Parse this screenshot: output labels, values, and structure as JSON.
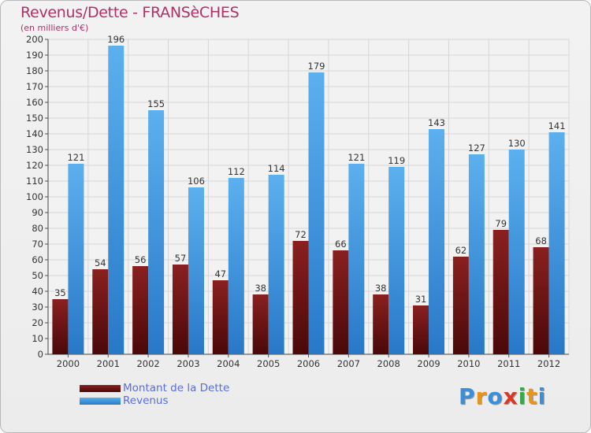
{
  "header": {
    "title": "Revenus/Dette - FRANSèCHES",
    "subtitle": "(en milliers d'€)"
  },
  "legend": {
    "items": [
      {
        "label": "Montant de la Dette",
        "color": "#7a1515"
      },
      {
        "label": "Revenus",
        "color": "#4a9fe0"
      }
    ]
  },
  "logo": {
    "letters": [
      {
        "ch": "P",
        "color": "#3a8fd8"
      },
      {
        "ch": "r",
        "color": "#e8941a"
      },
      {
        "ch": "o",
        "color": "#3a8fd8"
      },
      {
        "ch": "x",
        "color": "#d63a2a"
      },
      {
        "ch": "i",
        "color": "#3aa84a"
      },
      {
        "ch": "t",
        "color": "#e8941a"
      },
      {
        "ch": "i",
        "color": "#3a8fd8"
      }
    ]
  },
  "chart_data": {
    "type": "bar",
    "title": "Revenus/Dette - FRANSèCHES",
    "subtitle": "(en milliers d'€)",
    "xlabel": "",
    "ylabel": "",
    "categories": [
      "2000",
      "2001",
      "2002",
      "2003",
      "2004",
      "2005",
      "2006",
      "2007",
      "2008",
      "2009",
      "2010",
      "2011",
      "2012"
    ],
    "series": [
      {
        "name": "Montant de la Dette",
        "color": "#7a1515",
        "values": [
          35,
          54,
          56,
          57,
          47,
          38,
          72,
          66,
          38,
          31,
          62,
          79,
          68
        ]
      },
      {
        "name": "Revenus",
        "color": "#4a9fe0",
        "values": [
          121,
          196,
          155,
          106,
          112,
          114,
          179,
          121,
          119,
          143,
          127,
          130,
          141
        ]
      }
    ],
    "ylim": [
      0,
      200
    ],
    "ytick_step": 10,
    "grid": true,
    "legend_position": "bottom-left"
  }
}
